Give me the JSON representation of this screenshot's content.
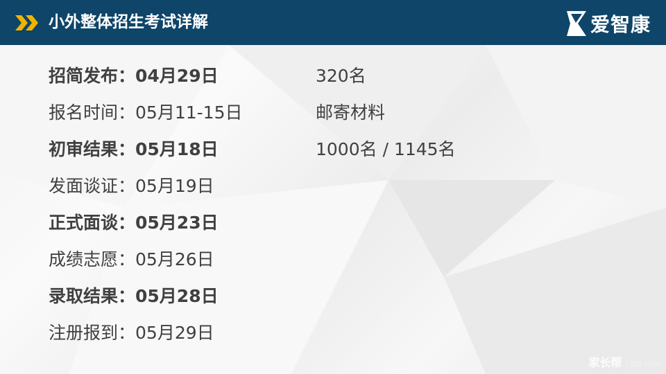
{
  "header": {
    "title": "小外整体招生考试详解",
    "logo_text": "爱智康",
    "accent": "#f0b400",
    "bg": "#0e4569"
  },
  "schedule": [
    {
      "label": "招简发布：",
      "date": "04月29日",
      "bold": true
    },
    {
      "label": "报名时间：",
      "date": "05月11-15日",
      "bold": false
    },
    {
      "label": "初审结果：",
      "date": "05月18日",
      "bold": true
    },
    {
      "label": "发面谈证：",
      "date": "05月19日",
      "bold": false
    },
    {
      "label": "正式面谈：",
      "date": "05月23日",
      "bold": true
    },
    {
      "label": "成绩志愿：",
      "date": "05月26日",
      "bold": false
    },
    {
      "label": "录取结果：",
      "date": "05月28日",
      "bold": true
    },
    {
      "label": "注册报到：",
      "date": "05月29日",
      "bold": false
    }
  ],
  "notes": [
    "320名",
    "邮寄材料",
    "1000名 / 1145名"
  ],
  "watermark": {
    "brand": "家长帮",
    "site": "jzb.com"
  }
}
